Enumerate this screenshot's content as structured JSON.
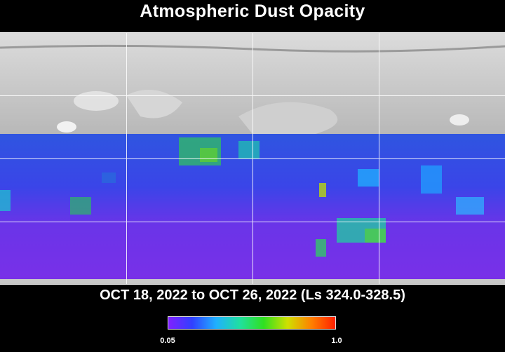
{
  "title": "Atmospheric Dust Opacity",
  "date_range": "OCT 18, 2022 to OCT 26, 2022 (Ls 324.0-328.5)",
  "colorbar": {
    "min_label": "0.05",
    "max_label": "1.0",
    "colors": [
      "#8020ff",
      "#3040ff",
      "#20b0ff",
      "#20e0a0",
      "#30e020",
      "#d0e000",
      "#ff8000",
      "#ff2000"
    ]
  },
  "map": {
    "terrain_color": "#c8c8c8",
    "grid_color": "#ffffff",
    "data_color_low": "#7a30e8",
    "data_color_mid": "#2f55e0",
    "dust_patch_color": "#30d050"
  }
}
